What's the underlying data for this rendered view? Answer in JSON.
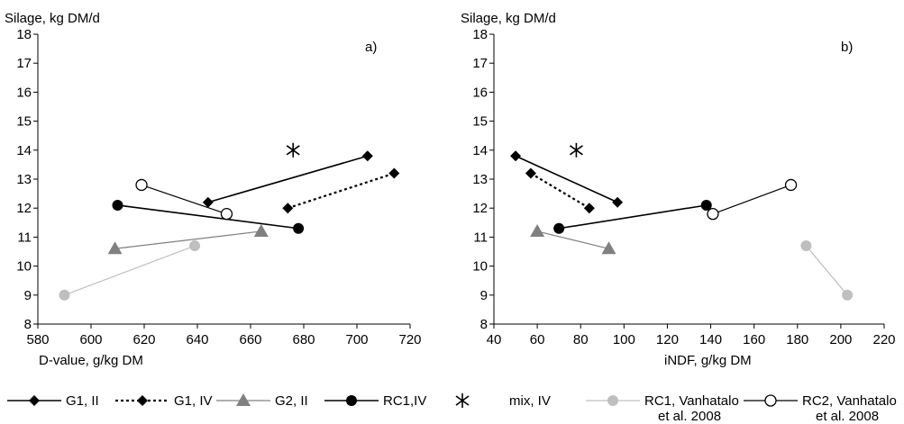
{
  "chart_data": [
    {
      "type": "line",
      "panel_label": "a)",
      "ylabel": "Silage, kg DM/d",
      "xlabel": "D-value, g/kg DM",
      "xlim": [
        580,
        720
      ],
      "ylim": [
        8,
        18
      ],
      "xticks": [
        "580",
        "600",
        "620",
        "640",
        "660",
        "680",
        "700",
        "720"
      ],
      "yticks": [
        "8",
        "9",
        "10",
        "11",
        "12",
        "13",
        "14",
        "15",
        "16",
        "17",
        "18"
      ],
      "grid": false,
      "series": [
        {
          "key": "g1ii",
          "points": [
            [
              644,
              12.2
            ],
            [
              704,
              13.8
            ]
          ]
        },
        {
          "key": "g1iv",
          "points": [
            [
              674,
              12.0
            ],
            [
              714,
              13.2
            ]
          ]
        },
        {
          "key": "g2ii",
          "points": [
            [
              609,
              10.6
            ],
            [
              664,
              11.2
            ]
          ]
        },
        {
          "key": "rc1iv",
          "points": [
            [
              610,
              12.1
            ],
            [
              678,
              11.3
            ]
          ]
        },
        {
          "key": "mix",
          "points": [
            [
              676,
              14.0
            ]
          ]
        },
        {
          "key": "rc1v",
          "points": [
            [
              590,
              9.0
            ],
            [
              639,
              10.7
            ]
          ]
        },
        {
          "key": "rc2v",
          "points": [
            [
              619,
              12.8
            ],
            [
              651,
              11.8
            ]
          ]
        }
      ]
    },
    {
      "type": "line",
      "panel_label": "b)",
      "ylabel": "Silage, kg DM/d",
      "xlabel": "iNDF, g/kg DM",
      "xlim": [
        40,
        220
      ],
      "ylim": [
        8,
        18
      ],
      "xticks": [
        "40",
        "60",
        "80",
        "100",
        "120",
        "140",
        "160",
        "180",
        "200",
        "220"
      ],
      "yticks": [
        "8",
        "9",
        "10",
        "11",
        "12",
        "13",
        "14",
        "15",
        "16",
        "17",
        "18"
      ],
      "grid": false,
      "series": [
        {
          "key": "g1ii",
          "points": [
            [
              50,
              13.8
            ],
            [
              97,
              12.2
            ]
          ]
        },
        {
          "key": "g1iv",
          "points": [
            [
              57,
              13.2
            ],
            [
              84,
              12.0
            ]
          ]
        },
        {
          "key": "g2ii",
          "points": [
            [
              60,
              11.2
            ],
            [
              93,
              10.6
            ]
          ]
        },
        {
          "key": "rc1iv",
          "points": [
            [
              70,
              11.3
            ],
            [
              138,
              12.1
            ]
          ]
        },
        {
          "key": "mix",
          "points": [
            [
              78,
              14.0
            ]
          ]
        },
        {
          "key": "rc1v",
          "points": [
            [
              184,
              10.7
            ],
            [
              203,
              9.0
            ]
          ]
        },
        {
          "key": "rc2v",
          "points": [
            [
              141,
              11.8
            ],
            [
              177,
              12.8
            ]
          ]
        }
      ]
    }
  ],
  "legend": [
    {
      "key": "g1ii",
      "label": "G1, II",
      "label2": "",
      "marker": "diamond",
      "line": "solid",
      "color": "#000000"
    },
    {
      "key": "g1iv",
      "label": "G1, IV",
      "label2": "",
      "marker": "diamond",
      "line": "dotted",
      "color": "#000000"
    },
    {
      "key": "g2ii",
      "label": "G2, II",
      "label2": "",
      "marker": "triangle",
      "line": "solid",
      "color": "#808080"
    },
    {
      "key": "rc1iv",
      "label": "RC1,IV",
      "label2": "",
      "marker": "circle",
      "line": "solid",
      "color": "#000000"
    },
    {
      "key": "mix",
      "label": "mix, IV",
      "label2": "",
      "marker": "asterisk",
      "line": "none",
      "color": "#000000"
    },
    {
      "key": "rc1v",
      "label": "RC1, Vanhatalo",
      "label2": "et al. 2008",
      "marker": "circle",
      "line": "solid",
      "color": "#bfbfbf"
    },
    {
      "key": "rc2v",
      "label": "RC2, Vanhatalo",
      "label2": "et al. 2008",
      "marker": "open-circle",
      "line": "solid",
      "color": "#000000"
    }
  ]
}
